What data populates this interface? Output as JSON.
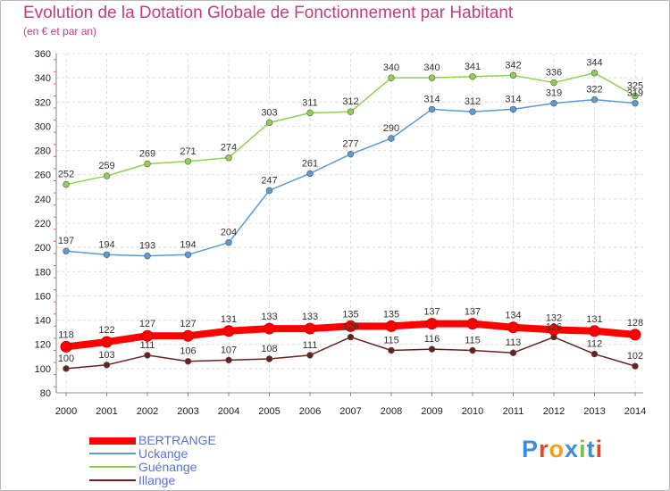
{
  "header": {
    "title": "Evolution de la Dotation Globale de Fonctionnement par Habitant",
    "subtitle": "(en € et par an)"
  },
  "logo": {
    "text": "Proxiti",
    "letter_colors": [
      "#3a8fd8",
      "#e8432a",
      "#f2a20e",
      "#3a8fd8",
      "#7cc242",
      "#3a8fd8",
      "#e8432a"
    ]
  },
  "chart_data": {
    "type": "line",
    "x": [
      "2000",
      "2001",
      "2002",
      "2003",
      "2004",
      "2005",
      "2006",
      "2007",
      "2008",
      "2009",
      "2010",
      "2011",
      "2012",
      "2013",
      "2014"
    ],
    "ylim": [
      80,
      360
    ],
    "yticks": [
      80,
      100,
      120,
      140,
      160,
      180,
      200,
      220,
      240,
      260,
      280,
      300,
      320,
      340,
      360
    ],
    "grid": true,
    "legend_position": "bottom-left",
    "series": [
      {
        "name": "Guénange",
        "color": "#8fd14f",
        "values": [
          252,
          259,
          269,
          271,
          274,
          303,
          311,
          312,
          340,
          340,
          341,
          342,
          336,
          344,
          325
        ],
        "labels": [
          "252",
          "259",
          "269",
          "271",
          "274",
          "303",
          "311",
          "312",
          "340",
          "340",
          "341",
          "342",
          "336",
          "344",
          "325"
        ]
      },
      {
        "name": "Uckange",
        "color": "#5b9bd5",
        "values": [
          197,
          194,
          193,
          194,
          204,
          247,
          261,
          277,
          290,
          314,
          312,
          314,
          319,
          322,
          319
        ],
        "labels": [
          "197",
          "194",
          "193",
          "194",
          "204",
          "247",
          "261",
          "277",
          "290",
          "314",
          "312",
          "314",
          "319",
          "322",
          "319"
        ]
      },
      {
        "name": "Illange",
        "color": "#6b2020",
        "values": [
          100,
          103,
          111,
          106,
          107,
          108,
          111,
          126,
          115,
          116,
          115,
          113,
          126,
          112,
          102
        ],
        "labels": [
          "100",
          "103",
          "111",
          "106",
          "107",
          "108",
          "111",
          "126",
          "115",
          "116",
          "115",
          "113",
          "126",
          "112",
          "102"
        ]
      },
      {
        "name": "BERTRANGE",
        "color": "#ff0000",
        "values": [
          118,
          122,
          127,
          127,
          131,
          133,
          133,
          135,
          135,
          137,
          137,
          134,
          132,
          131,
          128
        ],
        "labels": [
          "118",
          "122",
          "127",
          "127",
          "131",
          "133",
          "133",
          "135",
          "135",
          "137",
          "137",
          "134",
          "132",
          "131",
          "128"
        ]
      }
    ],
    "legend": [
      "BERTRANGE",
      "Uckange",
      "Guénange",
      "Illange"
    ]
  }
}
